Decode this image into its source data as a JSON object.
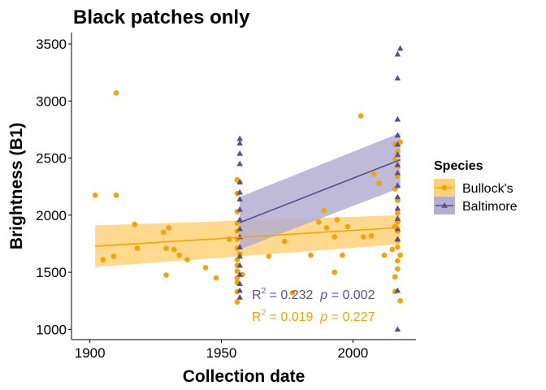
{
  "chart_data": {
    "type": "scatter",
    "title": "Black patches only",
    "xlabel": "Collection date",
    "ylabel": "Brightness (B1)",
    "xlim": [
      1893,
      2024
    ],
    "ylim": [
      910,
      3600
    ],
    "x_ticks": [
      1900,
      1950,
      2000
    ],
    "y_ticks": [
      1000,
      1500,
      2000,
      2500,
      3000,
      3500
    ],
    "grid": false,
    "legend": {
      "title": "Species",
      "placement": "right",
      "entries": [
        "Bullock's",
        "Baltimore"
      ]
    },
    "colors": {
      "Bullock's": "#f5a300",
      "Baltimore": "#5b4e8e"
    },
    "series": [
      {
        "name": "Bullock's",
        "marker": "circle",
        "points": [
          [
            1902,
            2175
          ],
          [
            1905,
            1610
          ],
          [
            1909,
            1640
          ],
          [
            1910,
            3070
          ],
          [
            1910,
            2175
          ],
          [
            1917,
            1920
          ],
          [
            1918,
            1710
          ],
          [
            1928,
            1850
          ],
          [
            1929,
            1710
          ],
          [
            1929,
            1475
          ],
          [
            1930,
            1890
          ],
          [
            1932,
            1700
          ],
          [
            1934,
            1650
          ],
          [
            1937,
            1610
          ],
          [
            1944,
            1540
          ],
          [
            1948,
            1450
          ],
          [
            1953,
            1790
          ],
          [
            1956,
            1240
          ],
          [
            1956,
            1330
          ],
          [
            1956,
            1410
          ],
          [
            1956,
            1450
          ],
          [
            1956,
            1510
          ],
          [
            1956,
            1560
          ],
          [
            1956,
            1610
          ],
          [
            1956,
            1710
          ],
          [
            1956,
            1790
          ],
          [
            1956,
            1860
          ],
          [
            1956,
            1930
          ],
          [
            1956,
            2030
          ],
          [
            1956,
            2190
          ],
          [
            1956,
            2310
          ],
          [
            1957,
            1660
          ],
          [
            1957,
            2290
          ],
          [
            1958,
            1480
          ],
          [
            1968,
            1640
          ],
          [
            1974,
            1770
          ],
          [
            1977,
            1320
          ],
          [
            1984,
            1650
          ],
          [
            1987,
            1940
          ],
          [
            1989,
            2040
          ],
          [
            1990,
            1890
          ],
          [
            1993,
            1810
          ],
          [
            1993,
            1500
          ],
          [
            1994,
            1960
          ],
          [
            1996,
            1650
          ],
          [
            1998,
            1900
          ],
          [
            2003,
            2870
          ],
          [
            2004,
            1810
          ],
          [
            2007,
            1820
          ],
          [
            2008,
            2360
          ],
          [
            2010,
            2280
          ],
          [
            2012,
            1650
          ],
          [
            2015,
            1700
          ],
          [
            2016,
            1330
          ],
          [
            2016,
            1460
          ],
          [
            2016,
            1900
          ],
          [
            2016,
            2230
          ],
          [
            2016,
            2490
          ],
          [
            2016,
            2620
          ],
          [
            2017,
            1530
          ],
          [
            2017,
            1600
          ],
          [
            2017,
            1720
          ],
          [
            2017,
            1780
          ],
          [
            2017,
            1860
          ],
          [
            2017,
            1940
          ],
          [
            2017,
            2020
          ],
          [
            2017,
            2130
          ],
          [
            2017,
            2340
          ],
          [
            2017,
            2430
          ],
          [
            2017,
            2560
          ],
          [
            2018,
            1250
          ],
          [
            2018,
            1650
          ],
          [
            2018,
            2640
          ]
        ],
        "trend": {
          "x": [
            1902,
            2018
          ],
          "y": [
            1728,
            1892
          ],
          "ci_lower": [
            1545,
            1745
          ],
          "ci_upper": [
            1910,
            2000
          ]
        }
      },
      {
        "name": "Baltimore",
        "marker": "triangle",
        "points": [
          [
            1957,
            1280
          ],
          [
            1957,
            1340
          ],
          [
            1957,
            1400
          ],
          [
            1957,
            1480
          ],
          [
            1957,
            1560
          ],
          [
            1957,
            1640
          ],
          [
            1957,
            1720
          ],
          [
            1957,
            1810
          ],
          [
            1957,
            1880
          ],
          [
            1957,
            1960
          ],
          [
            1957,
            2050
          ],
          [
            1957,
            2140
          ],
          [
            1957,
            2200
          ],
          [
            1957,
            2290
          ],
          [
            1957,
            2450
          ],
          [
            1957,
            2540
          ],
          [
            1957,
            2630
          ],
          [
            1957,
            2670
          ],
          [
            2017,
            1000
          ],
          [
            2017,
            1340
          ],
          [
            2017,
            1790
          ],
          [
            2017,
            1880
          ],
          [
            2017,
            1970
          ],
          [
            2017,
            2060
          ],
          [
            2017,
            2160
          ],
          [
            2017,
            2260
          ],
          [
            2017,
            2370
          ],
          [
            2017,
            2440
          ],
          [
            2017,
            2530
          ],
          [
            2017,
            2620
          ],
          [
            2017,
            2700
          ],
          [
            2017,
            2840
          ],
          [
            2017,
            3200
          ],
          [
            2017,
            3410
          ],
          [
            2018,
            3460
          ]
        ],
        "trend": {
          "x": [
            1957,
            2018
          ],
          "y": [
            1935,
            2485
          ],
          "ci_lower": [
            1700,
            2240
          ],
          "ci_upper": [
            2160,
            2720
          ]
        }
      }
    ],
    "annotations": [
      {
        "series": "Baltimore",
        "r2_label": "R",
        "r2_sup": "2",
        "r2_value": " = 0.232",
        "p_label": "p",
        "p_value": " = 0.002"
      },
      {
        "series": "Bullock's",
        "r2_label": "R",
        "r2_sup": "2",
        "r2_value": " = 0.019",
        "p_label": "p",
        "p_value": " = 0.227"
      }
    ]
  }
}
